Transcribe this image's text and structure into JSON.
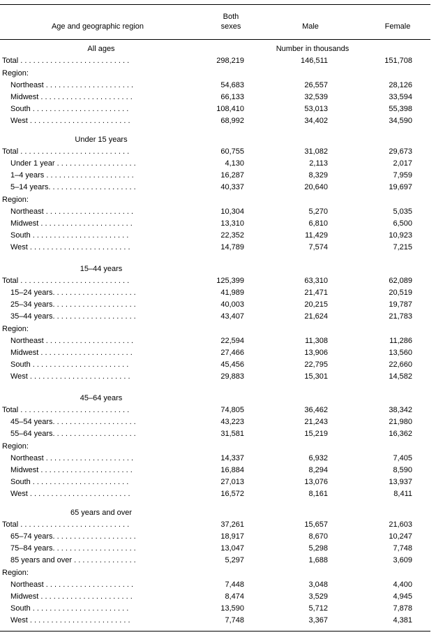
{
  "header": {
    "stub": "Age and geographic region",
    "both_line1": "Both",
    "both_line2": "sexes",
    "male": "Male",
    "female": "Female"
  },
  "unit_label": "Number in thousands",
  "sections": [
    {
      "title": "All ages",
      "totals": [
        {
          "label": "Total . . . . . . . . . . . . . . . . . . . . . . . . . .",
          "both": "298,219",
          "male": "146,511",
          "female": "151,708"
        }
      ],
      "region_label": "Region:",
      "regions": [
        {
          "label": "Northeast . . . . . . . . . . . . . . . . . . . . .",
          "both": "54,683",
          "male": "26,557",
          "female": "28,126"
        },
        {
          "label": "Midwest . . . . . . . . . . . . . . . . . . . . . .",
          "both": "66,133",
          "male": "32,539",
          "female": "33,594"
        },
        {
          "label": "South . . . . . . . . . . . . . . . . . . . . . . .",
          "both": "108,410",
          "male": "53,013",
          "female": "55,398"
        },
        {
          "label": "West . . . . . . . . . . . . . . . . . . . . . . . .",
          "both": "68,992",
          "male": "34,402",
          "female": "34,590"
        }
      ]
    },
    {
      "title": "Under 15 years",
      "totals": [
        {
          "label": "Total . . . . . . . . . . . . . . . . . . . . . . . . . .",
          "both": "60,755",
          "male": "31,082",
          "female": "29,673"
        },
        {
          "label": "Under 1 year . . . . . . . . . . . . . . . . . . .",
          "both": "4,130",
          "male": "2,113",
          "female": "2,017",
          "indent": true
        },
        {
          "label": "1–4 years . . . . . . . . . . . . . . . . . . . . .",
          "both": "16,287",
          "male": "8,329",
          "female": "7,959",
          "indent": true
        },
        {
          "label": "5–14 years. . . . . . . . . . . . . . . . . . . . .",
          "both": "40,337",
          "male": "20,640",
          "female": "19,697",
          "indent": true
        }
      ],
      "region_label": "Region:",
      "regions": [
        {
          "label": "Northeast . . . . . . . . . . . . . . . . . . . . .",
          "both": "10,304",
          "male": "5,270",
          "female": "5,035"
        },
        {
          "label": "Midwest . . . . . . . . . . . . . . . . . . . . . .",
          "both": "13,310",
          "male": "6,810",
          "female": "6,500"
        },
        {
          "label": "South . . . . . . . . . . . . . . . . . . . . . . .",
          "both": "22,352",
          "male": "11,429",
          "female": "10,923"
        },
        {
          "label": "West . . . . . . . . . . . . . . . . . . . . . . . .",
          "both": "14,789",
          "male": "7,574",
          "female": "7,215"
        }
      ]
    },
    {
      "title": "15–44 years",
      "totals": [
        {
          "label": "Total . . . . . . . . . . . . . . . . . . . . . . . . . .",
          "both": "125,399",
          "male": "63,310",
          "female": "62,089"
        },
        {
          "label": "15–24 years. . . . . . . . . . . . . . . . . . . .",
          "both": "41,989",
          "male": "21,471",
          "female": "20,519",
          "indent": true
        },
        {
          "label": "25–34 years. . . . . . . . . . . . . . . . . . . .",
          "both": "40,003",
          "male": "20,215",
          "female": "19,787",
          "indent": true
        },
        {
          "label": "35–44 years. . . . . . . . . . . . . . . . . . . .",
          "both": "43,407",
          "male": "21,624",
          "female": "21,783",
          "indent": true
        }
      ],
      "region_label": "Region:",
      "regions": [
        {
          "label": "Northeast . . . . . . . . . . . . . . . . . . . . .",
          "both": "22,594",
          "male": "11,308",
          "female": "11,286"
        },
        {
          "label": "Midwest . . . . . . . . . . . . . . . . . . . . . .",
          "both": "27,466",
          "male": "13,906",
          "female": "13,560"
        },
        {
          "label": "South . . . . . . . . . . . . . . . . . . . . . . .",
          "both": "45,456",
          "male": "22,795",
          "female": "22,660"
        },
        {
          "label": "West . . . . . . . . . . . . . . . . . . . . . . . .",
          "both": "29,883",
          "male": "15,301",
          "female": "14,582"
        }
      ]
    },
    {
      "title": "45–64 years",
      "totals": [
        {
          "label": "Total . . . . . . . . . . . . . . . . . . . . . . . . . .",
          "both": "74,805",
          "male": "36,462",
          "female": "38,342"
        },
        {
          "label": "45–54 years. . . . . . . . . . . . . . . . . . . .",
          "both": "43,223",
          "male": "21,243",
          "female": "21,980",
          "indent": true
        },
        {
          "label": "55–64 years. . . . . . . . . . . . . . . . . . . .",
          "both": "31,581",
          "male": "15,219",
          "female": "16,362",
          "indent": true
        }
      ],
      "region_label": "Region:",
      "regions": [
        {
          "label": "Northeast . . . . . . . . . . . . . . . . . . . . .",
          "both": "14,337",
          "male": "6,932",
          "female": "7,405"
        },
        {
          "label": "Midwest . . . . . . . . . . . . . . . . . . . . . .",
          "both": "16,884",
          "male": "8,294",
          "female": "8,590"
        },
        {
          "label": "South . . . . . . . . . . . . . . . . . . . . . . .",
          "both": "27,013",
          "male": "13,076",
          "female": "13,937"
        },
        {
          "label": "West . . . . . . . . . . . . . . . . . . . . . . . .",
          "both": "16,572",
          "male": "8,161",
          "female": "8,411"
        }
      ]
    },
    {
      "title": "65 years and over",
      "totals": [
        {
          "label": "Total . . . . . . . . . . . . . . . . . . . . . . . . . .",
          "both": "37,261",
          "male": "15,657",
          "female": "21,603"
        },
        {
          "label": "65–74 years. . . . . . . . . . . . . . . . . . . .",
          "both": "18,917",
          "male": "8,670",
          "female": "10,247",
          "indent": true
        },
        {
          "label": "75–84 years. . . . . . . . . . . . . . . . . . . .",
          "both": "13,047",
          "male": "5,298",
          "female": "7,748",
          "indent": true
        },
        {
          "label": "85 years and over . . . . . . . . . . . . . . .",
          "both": "5,297",
          "male": "1,688",
          "female": "3,609",
          "indent": true
        }
      ],
      "region_label": "Region:",
      "regions": [
        {
          "label": "Northeast . . . . . . . . . . . . . . . . . . . . .",
          "both": "7,448",
          "male": "3,048",
          "female": "4,400"
        },
        {
          "label": "Midwest . . . . . . . . . . . . . . . . . . . . . .",
          "both": "8,474",
          "male": "3,529",
          "female": "4,945"
        },
        {
          "label": "South . . . . . . . . . . . . . . . . . . . . . . .",
          "both": "13,590",
          "male": "5,712",
          "female": "7,878"
        },
        {
          "label": "West . . . . . . . . . . . . . . . . . . . . . . . .",
          "both": "7,748",
          "male": "3,367",
          "female": "4,381"
        }
      ]
    }
  ]
}
